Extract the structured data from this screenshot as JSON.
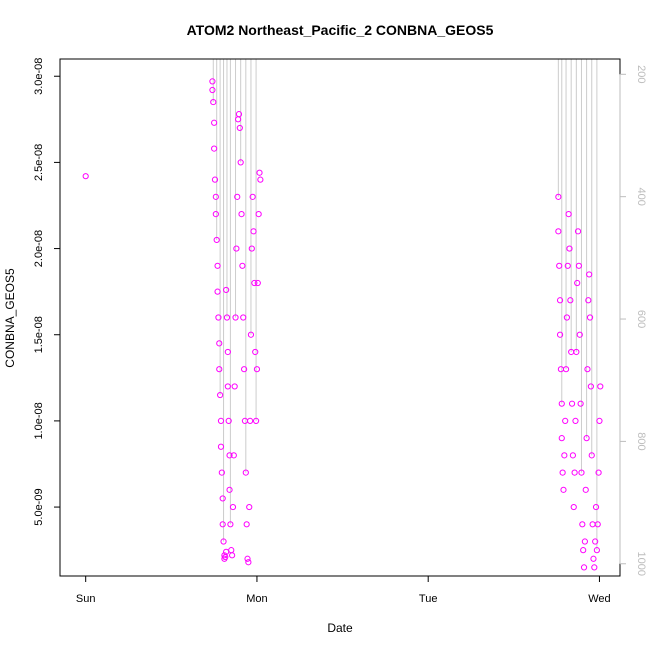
{
  "chart_data": {
    "type": "scatter",
    "title": "ATOM2 Northeast_Pacific_2 CONBNA_GEOS5",
    "xlabel": "Date",
    "ylabel": "CONBNA_GEOS5",
    "x_ticks": [
      "Sun",
      "Mon",
      "Tue",
      "Wed"
    ],
    "x_tick_values": [
      0,
      1,
      2,
      3
    ],
    "xlim": [
      -0.15,
      3.12
    ],
    "ylim": [
      1e-09,
      3.1e-08
    ],
    "y_ticks": [
      {
        "value": 5e-09,
        "label": "5.0e-09"
      },
      {
        "value": 1e-08,
        "label": "1.0e-08"
      },
      {
        "value": 1.5e-08,
        "label": "1.5e-08"
      },
      {
        "value": 2e-08,
        "label": "2.0e-08"
      },
      {
        "value": 2.5e-08,
        "label": "2.5e-08"
      },
      {
        "value": 3e-08,
        "label": "3.0e-08"
      }
    ],
    "y2_ticks": [
      200,
      400,
      600,
      800,
      1000
    ],
    "y2_lim": [
      1020,
      175
    ],
    "series": [
      {
        "color": "#ff00ff",
        "points": [
          [
            0.0,
            2.42e-08
          ],
          [
            0.74,
            2.97e-08
          ],
          [
            0.74,
            2.92e-08
          ],
          [
            0.745,
            2.85e-08
          ],
          [
            0.75,
            2.73e-08
          ],
          [
            0.75,
            2.58e-08
          ],
          [
            0.755,
            2.4e-08
          ],
          [
            0.76,
            2.3e-08
          ],
          [
            0.76,
            2.2e-08
          ],
          [
            0.765,
            2.05e-08
          ],
          [
            0.77,
            1.9e-08
          ],
          [
            0.77,
            1.75e-08
          ],
          [
            0.775,
            1.6e-08
          ],
          [
            0.78,
            1.45e-08
          ],
          [
            0.78,
            1.3e-08
          ],
          [
            0.785,
            1.15e-08
          ],
          [
            0.79,
            1e-08
          ],
          [
            0.79,
            8.5e-09
          ],
          [
            0.795,
            7e-09
          ],
          [
            0.8,
            5.5e-09
          ],
          [
            0.8,
            4e-09
          ],
          [
            0.805,
            3e-09
          ],
          [
            0.81,
            2.2e-09
          ],
          [
            0.81,
            2e-09
          ],
          [
            0.815,
            2.1e-09
          ],
          [
            0.82,
            2.4e-09
          ],
          [
            0.82,
            1.76e-08
          ],
          [
            0.825,
            1.6e-08
          ],
          [
            0.83,
            1.4e-08
          ],
          [
            0.83,
            1.2e-08
          ],
          [
            0.835,
            1e-08
          ],
          [
            0.84,
            8e-09
          ],
          [
            0.84,
            6e-09
          ],
          [
            0.845,
            4e-09
          ],
          [
            0.85,
            2.5e-09
          ],
          [
            0.855,
            2.2e-09
          ],
          [
            0.86,
            5e-09
          ],
          [
            0.865,
            8e-09
          ],
          [
            0.87,
            1.2e-08
          ],
          [
            0.875,
            1.6e-08
          ],
          [
            0.88,
            2e-08
          ],
          [
            0.885,
            2.3e-08
          ],
          [
            0.89,
            2.75e-08
          ],
          [
            0.895,
            2.78e-08
          ],
          [
            0.9,
            2.7e-08
          ],
          [
            0.905,
            2.5e-08
          ],
          [
            0.91,
            2.2e-08
          ],
          [
            0.915,
            1.9e-08
          ],
          [
            0.92,
            1.6e-08
          ],
          [
            0.925,
            1.3e-08
          ],
          [
            0.93,
            1e-08
          ],
          [
            0.935,
            7e-09
          ],
          [
            0.94,
            4e-09
          ],
          [
            0.945,
            2e-09
          ],
          [
            0.95,
            1.8e-09
          ],
          [
            0.955,
            5e-09
          ],
          [
            0.96,
            1e-08
          ],
          [
            0.965,
            1.5e-08
          ],
          [
            0.97,
            2e-08
          ],
          [
            0.975,
            2.3e-08
          ],
          [
            0.98,
            2.1e-08
          ],
          [
            0.985,
            1.8e-08
          ],
          [
            0.99,
            1.4e-08
          ],
          [
            0.995,
            1e-08
          ],
          [
            1.0,
            1.3e-08
          ],
          [
            1.005,
            1.8e-08
          ],
          [
            1.01,
            2.2e-08
          ],
          [
            1.015,
            2.44e-08
          ],
          [
            1.02,
            2.4e-08
          ],
          [
            2.76,
            2.3e-08
          ],
          [
            2.76,
            2.1e-08
          ],
          [
            2.765,
            1.9e-08
          ],
          [
            2.77,
            1.7e-08
          ],
          [
            2.77,
            1.5e-08
          ],
          [
            2.775,
            1.3e-08
          ],
          [
            2.78,
            1.1e-08
          ],
          [
            2.78,
            9e-09
          ],
          [
            2.785,
            7e-09
          ],
          [
            2.79,
            6e-09
          ],
          [
            2.795,
            8e-09
          ],
          [
            2.8,
            1e-08
          ],
          [
            2.805,
            1.3e-08
          ],
          [
            2.81,
            1.6e-08
          ],
          [
            2.815,
            1.9e-08
          ],
          [
            2.82,
            2.2e-08
          ],
          [
            2.825,
            2e-08
          ],
          [
            2.83,
            1.7e-08
          ],
          [
            2.835,
            1.4e-08
          ],
          [
            2.84,
            1.1e-08
          ],
          [
            2.845,
            8e-09
          ],
          [
            2.85,
            5e-09
          ],
          [
            2.855,
            7e-09
          ],
          [
            2.86,
            1e-08
          ],
          [
            2.865,
            1.4e-08
          ],
          [
            2.87,
            1.8e-08
          ],
          [
            2.875,
            2.1e-08
          ],
          [
            2.88,
            1.9e-08
          ],
          [
            2.885,
            1.5e-08
          ],
          [
            2.89,
            1.1e-08
          ],
          [
            2.895,
            7e-09
          ],
          [
            2.9,
            4e-09
          ],
          [
            2.905,
            2.5e-09
          ],
          [
            2.91,
            1.5e-09
          ],
          [
            2.915,
            3e-09
          ],
          [
            2.92,
            6e-09
          ],
          [
            2.925,
            9e-09
          ],
          [
            2.93,
            1.3e-08
          ],
          [
            2.935,
            1.7e-08
          ],
          [
            2.94,
            1.85e-08
          ],
          [
            2.945,
            1.6e-08
          ],
          [
            2.95,
            1.2e-08
          ],
          [
            2.955,
            8e-09
          ],
          [
            2.96,
            4e-09
          ],
          [
            2.965,
            2e-09
          ],
          [
            2.97,
            1.5e-09
          ],
          [
            2.975,
            3e-09
          ],
          [
            2.98,
            5e-09
          ],
          [
            2.985,
            2.5e-09
          ],
          [
            2.99,
            4e-09
          ],
          [
            2.995,
            7e-09
          ],
          [
            3.0,
            1e-08
          ],
          [
            3.005,
            1.2e-08
          ]
        ]
      }
    ],
    "grid": false,
    "legend": "none"
  }
}
